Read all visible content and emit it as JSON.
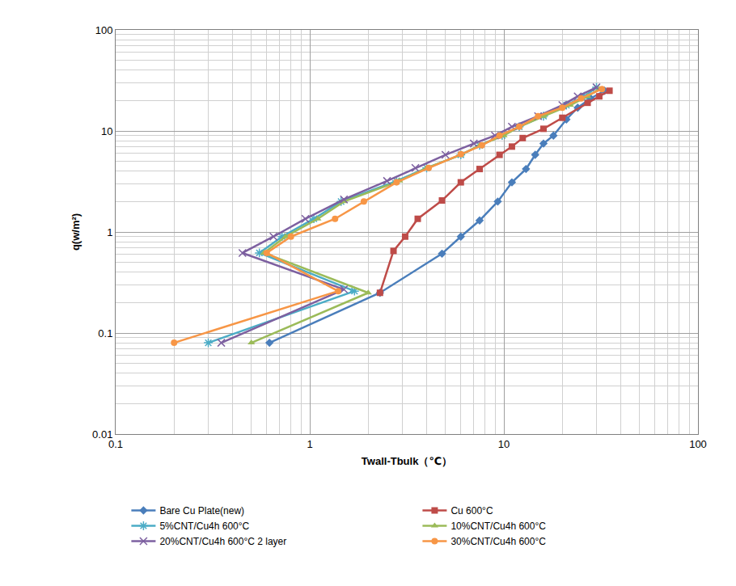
{
  "chart_data": {
    "type": "line",
    "x_title": "Twall-Tbulk（℃）",
    "y_title": "q(w/m²)",
    "log": true,
    "grid": true,
    "legend": "bottom",
    "xlim": [
      0.1,
      100
    ],
    "xticks": [
      0.1,
      1,
      10,
      100
    ],
    "ylim": [
      0.01,
      100
    ],
    "yticks": [
      0.01,
      0.1,
      1,
      10,
      100
    ],
    "series": [
      {
        "name": "Bare Cu Plate(new)",
        "color": "#4a7ebb",
        "marker": "diamond",
        "line_style": "solid",
        "x": [
          0.62,
          2.3,
          4.8,
          6.0,
          7.5,
          9.3,
          11,
          13,
          14.5,
          16,
          18,
          21,
          24,
          28,
          33
        ],
        "values": [
          0.08,
          0.25,
          0.61,
          0.9,
          1.3,
          2.0,
          3.1,
          4.2,
          5.8,
          7.5,
          9.0,
          13,
          17,
          21,
          25
        ]
      },
      {
        "name": "Cu 600°C",
        "color": "#be4b48",
        "marker": "square",
        "line_style": "solid",
        "x": [
          2.3,
          2.7,
          3.1,
          3.6,
          4.8,
          6.0,
          7.5,
          9.5,
          11,
          12.5,
          16,
          20,
          27,
          31,
          35
        ],
        "values": [
          0.25,
          0.65,
          0.9,
          1.35,
          2.05,
          3.1,
          4.2,
          5.8,
          7.0,
          8.5,
          10.5,
          13.5,
          19,
          22,
          25
        ]
      },
      {
        "name": "5%CNT/Cu4h 600°C",
        "color": "#4bacc6",
        "marker": "star",
        "line_style": "solid",
        "x": [
          0.3,
          1.7,
          0.55,
          0.72,
          1.05,
          1.45,
          2.8,
          4.0,
          6.0,
          7.5,
          9.8,
          12,
          16,
          21,
          26,
          30
        ],
        "values": [
          0.08,
          0.26,
          0.62,
          0.9,
          1.35,
          2.0,
          3.2,
          4.3,
          5.8,
          7.2,
          9.0,
          11,
          14,
          18,
          22,
          27
        ]
      },
      {
        "name": "10%CNT/Cu4h 600°C",
        "color": "#9bbb59",
        "marker": "triangle",
        "line_style": "solid",
        "x": [
          0.5,
          2.0,
          0.58,
          0.75,
          1.1,
          1.5,
          2.9,
          4.0,
          6.0,
          7.5,
          10,
          12,
          16,
          22,
          27,
          31
        ],
        "values": [
          0.08,
          0.25,
          0.62,
          0.9,
          1.35,
          2.0,
          3.2,
          4.3,
          5.8,
          7.2,
          9.0,
          11,
          14,
          18,
          22,
          26
        ]
      },
      {
        "name": "20%CNT/Cu4h 600°C 2 layer",
        "color": "#7d60a0",
        "marker": "x",
        "line_style": "solid",
        "x": [
          0.35,
          1.5,
          0.45,
          0.65,
          0.95,
          1.5,
          2.5,
          3.5,
          5.0,
          7.0,
          9.0,
          11,
          15,
          20,
          24,
          30
        ],
        "values": [
          0.08,
          0.27,
          0.62,
          0.9,
          1.35,
          2.1,
          3.2,
          4.3,
          5.8,
          7.5,
          9.0,
          11,
          14,
          18,
          22,
          27
        ]
      },
      {
        "name": "30%CNT/Cu4h 600°C",
        "color": "#f79646",
        "marker": "circle",
        "line_style": "solid",
        "x": [
          0.2,
          1.4,
          0.6,
          0.8,
          1.35,
          1.9,
          2.8,
          4.1,
          6.0,
          7.7,
          9.5,
          12,
          15,
          20,
          25,
          32
        ],
        "values": [
          0.08,
          0.26,
          0.62,
          0.9,
          1.35,
          2.0,
          3.1,
          4.3,
          5.9,
          7.2,
          9.0,
          11,
          14,
          17,
          21,
          26
        ]
      }
    ]
  }
}
